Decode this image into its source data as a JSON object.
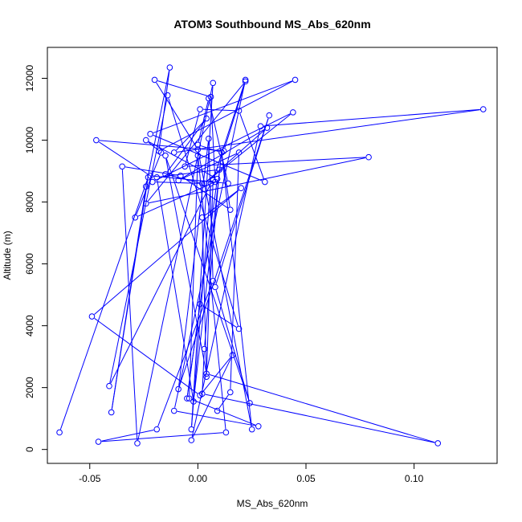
{
  "chart_data": {
    "type": "scatter",
    "title": "ATOM3 Southbound MS_Abs_620nm",
    "xlabel": "MS_Abs_620nm",
    "ylabel": "Altitude (m)",
    "xlim": [
      -0.0696,
      0.1384
    ],
    "ylim": [
      -450,
      13000
    ],
    "x_ticks": [
      -0.05,
      0.0,
      0.05,
      0.1
    ],
    "x_tick_labels": [
      "-0.05",
      "0.00",
      "0.05",
      "0.10"
    ],
    "y_ticks": [
      0,
      2000,
      4000,
      6000,
      8000,
      10000,
      12000
    ],
    "y_tick_labels": [
      "0",
      "2000",
      "4000",
      "6000",
      "8000",
      "10000",
      "12000"
    ],
    "grid": false,
    "legend": "none",
    "series_color": "#0000ff",
    "line_style": "points connected in sequence",
    "x": [
      -0.064,
      -0.023,
      -0.04,
      -0.024,
      -0.013,
      -0.018,
      0.045,
      -0.022,
      0.031,
      0.019,
      0.001,
      -0.006,
      0.079,
      -0.024,
      0.022,
      0.012,
      -0.047,
      -0.022,
      0.014,
      0.005,
      0.0,
      0.011,
      0.025,
      0.0,
      -0.02,
      0.006,
      0.008,
      -0.029,
      -0.017,
      -0.024,
      0.009,
      -0.005,
      0.001,
      0.019,
      -0.014,
      -0.041,
      0.006,
      -0.003,
      0.007,
      -0.028,
      -0.035,
      -0.008,
      0.015,
      0.011,
      -0.002,
      -0.019,
      0.01,
      0.003,
      0.002,
      0.111,
      0.004,
      -0.015,
      0.024,
      0.008,
      0.033,
      -0.009,
      0.005,
      0.007,
      -0.019,
      -0.046,
      0.013,
      0.0,
      -0.004,
      0.028,
      -0.011,
      0.022,
      0.007,
      0.004,
      0.002,
      0.02,
      -0.049,
      0.001,
      0.016,
      -0.003,
      0.029,
      0.132,
      -0.011,
      0.004,
      -0.015,
      0.002,
      -0.021,
      0.044,
      0.003,
      0.032,
      -0.009,
      0.019,
      0.015,
      0.009
    ],
    "y": [
      550,
      8800,
      1200,
      8500,
      12350,
      9650,
      11950,
      10200,
      8650,
      10950,
      11000,
      9150,
      9450,
      7950,
      11900,
      9650,
      10000,
      8850,
      8600,
      11350,
      9850,
      9600,
      650,
      9700,
      11950,
      11400,
      8650,
      7500,
      9600,
      10000,
      8750,
      1650,
      4700,
      3900,
      11450,
      2050,
      8600,
      650,
      11850,
      200,
      9150,
      8850,
      7750,
      9600,
      1550,
      8800,
      9050,
      3250,
      1800,
      200,
      2450,
      9500,
      1500,
      5250,
      10800,
      1950,
      10050,
      5450,
      650,
      250,
      550,
      9500,
      1650,
      750,
      1250,
      11950,
      8700,
      2350,
      7500,
      8450,
      4300,
      1750,
      3050,
      300,
      10450,
      11000,
      9600,
      10700,
      8900,
      8600,
      8650,
      10900,
      8600,
      10400,
      8700,
      9600,
      1850,
      1250
    ]
  }
}
